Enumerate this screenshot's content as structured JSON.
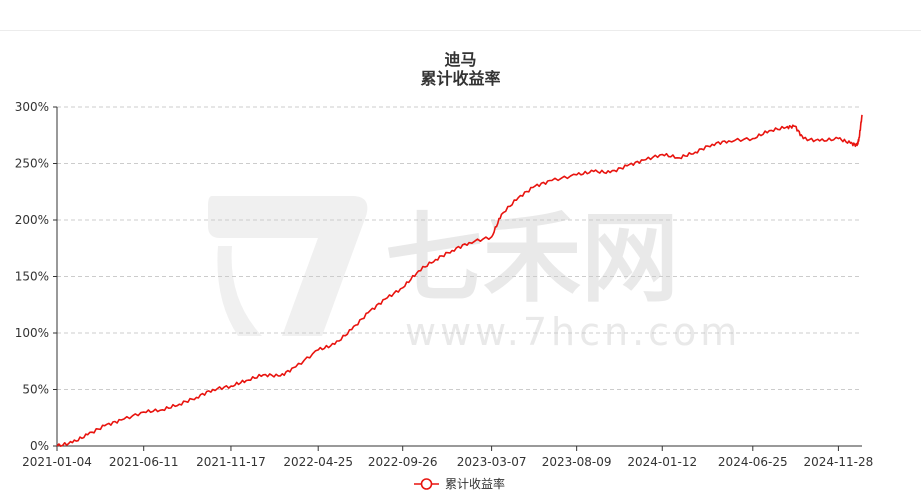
{
  "watermark": {
    "brand": "七禾网",
    "url": "www.7hcn.com"
  },
  "chart_data": {
    "type": "line",
    "title": "迪马",
    "subtitle": "累计收益率",
    "xlabel": "",
    "ylabel": "",
    "x_tick_labels": [
      "2021-01-04",
      "2021-06-11",
      "2021-11-17",
      "2022-04-25",
      "2022-09-26",
      "2023-03-07",
      "2023-08-09",
      "2024-01-12",
      "2024-06-25",
      "2024-11-28"
    ],
    "y_tick_labels": [
      "0%",
      "50%",
      "100%",
      "150%",
      "200%",
      "250%",
      "300%"
    ],
    "ylim": [
      0,
      300
    ],
    "y_unit": "%",
    "grid": true,
    "legend_position": "bottom-center",
    "series": [
      {
        "name": "累计收益率",
        "color": "#e8140f",
        "x": [
          "2021-01-04",
          "2021-02-01",
          "2021-03-01",
          "2021-04-01",
          "2021-05-01",
          "2021-06-11",
          "2021-07-15",
          "2021-08-15",
          "2021-09-15",
          "2021-10-15",
          "2021-11-17",
          "2021-12-15",
          "2022-01-15",
          "2022-02-15",
          "2022-03-15",
          "2022-04-25",
          "2022-05-25",
          "2022-06-25",
          "2022-07-25",
          "2022-08-25",
          "2022-09-26",
          "2022-10-25",
          "2022-11-25",
          "2022-12-25",
          "2023-01-25",
          "2023-03-07",
          "2023-03-25",
          "2023-04-25",
          "2023-05-25",
          "2023-06-25",
          "2023-08-09",
          "2023-09-09",
          "2023-10-09",
          "2023-11-09",
          "2023-12-09",
          "2024-01-12",
          "2024-02-12",
          "2024-03-12",
          "2024-04-12",
          "2024-05-12",
          "2024-06-25",
          "2024-07-25",
          "2024-08-25",
          "2024-09-10",
          "2024-09-25",
          "2024-10-25",
          "2024-11-28",
          "2024-12-20",
          "2025-01-01",
          "2025-01-05",
          "2025-01-10"
        ],
        "values": [
          0,
          3,
          10,
          18,
          23,
          30,
          32,
          37,
          43,
          50,
          53,
          58,
          63,
          62,
          70,
          85,
          90,
          103,
          118,
          130,
          140,
          155,
          165,
          173,
          180,
          185,
          205,
          220,
          230,
          235,
          240,
          243,
          242,
          248,
          253,
          258,
          255,
          260,
          267,
          270,
          272,
          279,
          282,
          283,
          272,
          270,
          272,
          268,
          266,
          273,
          293
        ]
      }
    ]
  }
}
